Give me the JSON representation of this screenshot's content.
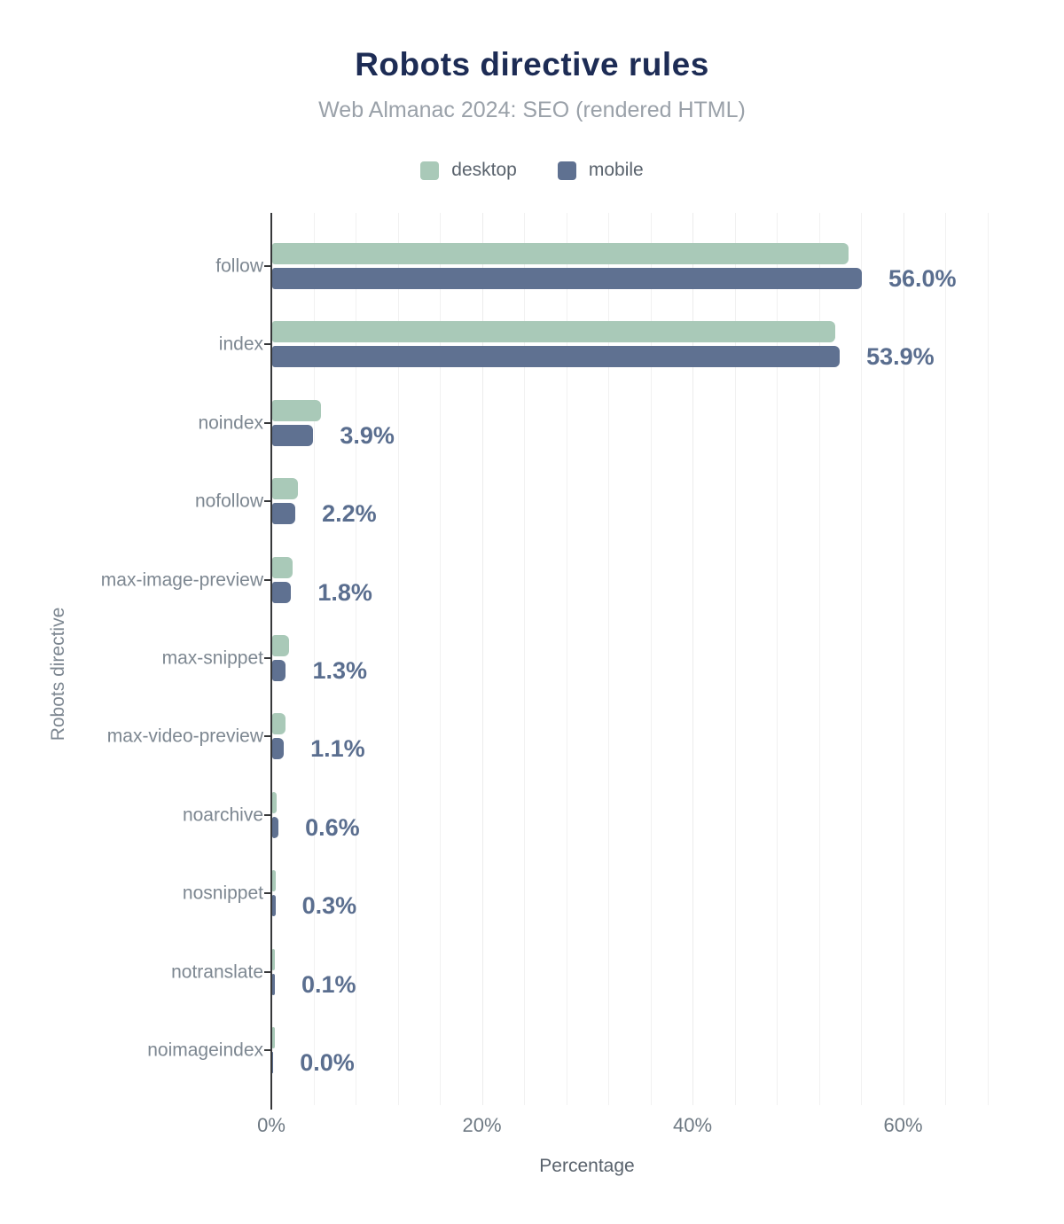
{
  "chart_data": {
    "type": "bar",
    "orientation": "horizontal",
    "title": "Robots directive rules",
    "subtitle": "Web Almanac 2024: SEO (rendered HTML)",
    "xlabel": "Percentage",
    "ylabel": "Robots directive",
    "categories": [
      "follow",
      "index",
      "noindex",
      "nofollow",
      "max-image-preview",
      "max-snippet",
      "max-video-preview",
      "noarchive",
      "nosnippet",
      "notranslate",
      "noimageindex"
    ],
    "series": [
      {
        "name": "desktop",
        "color": "#a9c9b8",
        "values": [
          54.7,
          53.5,
          4.6,
          2.4,
          1.9,
          1.6,
          1.3,
          0.4,
          0.3,
          0.1,
          0.1
        ]
      },
      {
        "name": "mobile",
        "color": "#5f7191",
        "values": [
          56.0,
          53.9,
          3.9,
          2.2,
          1.8,
          1.3,
          1.1,
          0.6,
          0.3,
          0.1,
          0.0
        ]
      }
    ],
    "data_labels": [
      "56.0%",
      "53.9%",
      "3.9%",
      "2.2%",
      "1.8%",
      "1.3%",
      "1.1%",
      "0.6%",
      "0.3%",
      "0.1%",
      "0.0%"
    ],
    "xlim": [
      0,
      70
    ],
    "x_ticks": [
      {
        "value": 0,
        "label": "0%"
      },
      {
        "value": 20,
        "label": "20%"
      },
      {
        "value": 40,
        "label": "40%"
      },
      {
        "value": 60,
        "label": "60%"
      }
    ],
    "grid": {
      "vertical_minor_step_pct": 4,
      "max_gridline_pct": 68
    },
    "legend_position": "top"
  },
  "colors": {
    "title": "#1d2c55",
    "subtitle": "#9aa1a9",
    "desktop_bar": "#a9c9b8",
    "mobile_bar": "#5f7191",
    "data_label": "#5a6e8f",
    "axis_line": "#37383a",
    "category_label": "#7d8791",
    "tick_label": "#6e7983",
    "gridline": "#f1f1f1"
  }
}
